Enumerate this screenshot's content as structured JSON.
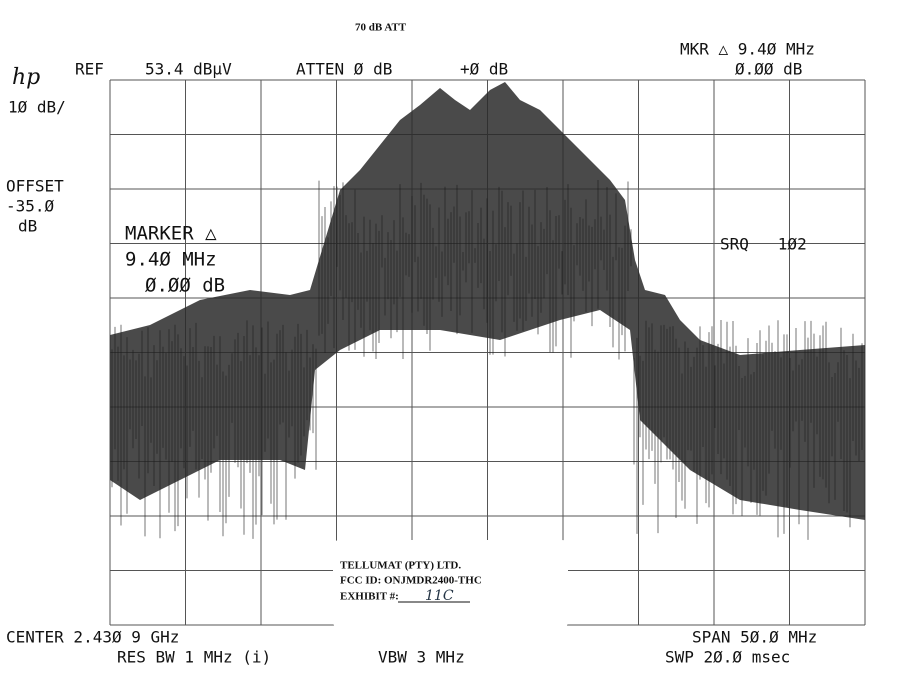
{
  "header": {
    "attenuation_note": "70 dB ATT",
    "logo": "hp",
    "ref": "REF",
    "ref_level": "53.4 dBµV",
    "atten": "ATTEN Ø dB",
    "gain": "+Ø dB",
    "marker_readout": "MKR △ 9.4Ø MHz",
    "marker_level": "Ø.ØØ dB"
  },
  "left_panel": {
    "scale": "1Ø dB/",
    "offset_label": "OFFSET",
    "offset_value": "-35.Ø",
    "offset_unit": "dB"
  },
  "marker_box": {
    "title": "MARKER △",
    "frequency": "9.4Ø MHz",
    "level": "Ø.ØØ dB"
  },
  "srq": "SRQ   1Ø2",
  "label": {
    "company": "TELLUMAT (PTY) LTD.",
    "fcc_id": "FCC ID: ONJMDR2400-THC",
    "exhibit": "EXHIBIT #:",
    "exhibit_value": "11C"
  },
  "footer": {
    "center": "CENTER 2.43Ø 9 GHz",
    "span": "SPAN 5Ø.Ø MHz",
    "res_bw": "RES BW 1 MHz (i)",
    "vbw": "VBW 3 MHz",
    "sweep": "SWP 2Ø.Ø msec"
  }
}
